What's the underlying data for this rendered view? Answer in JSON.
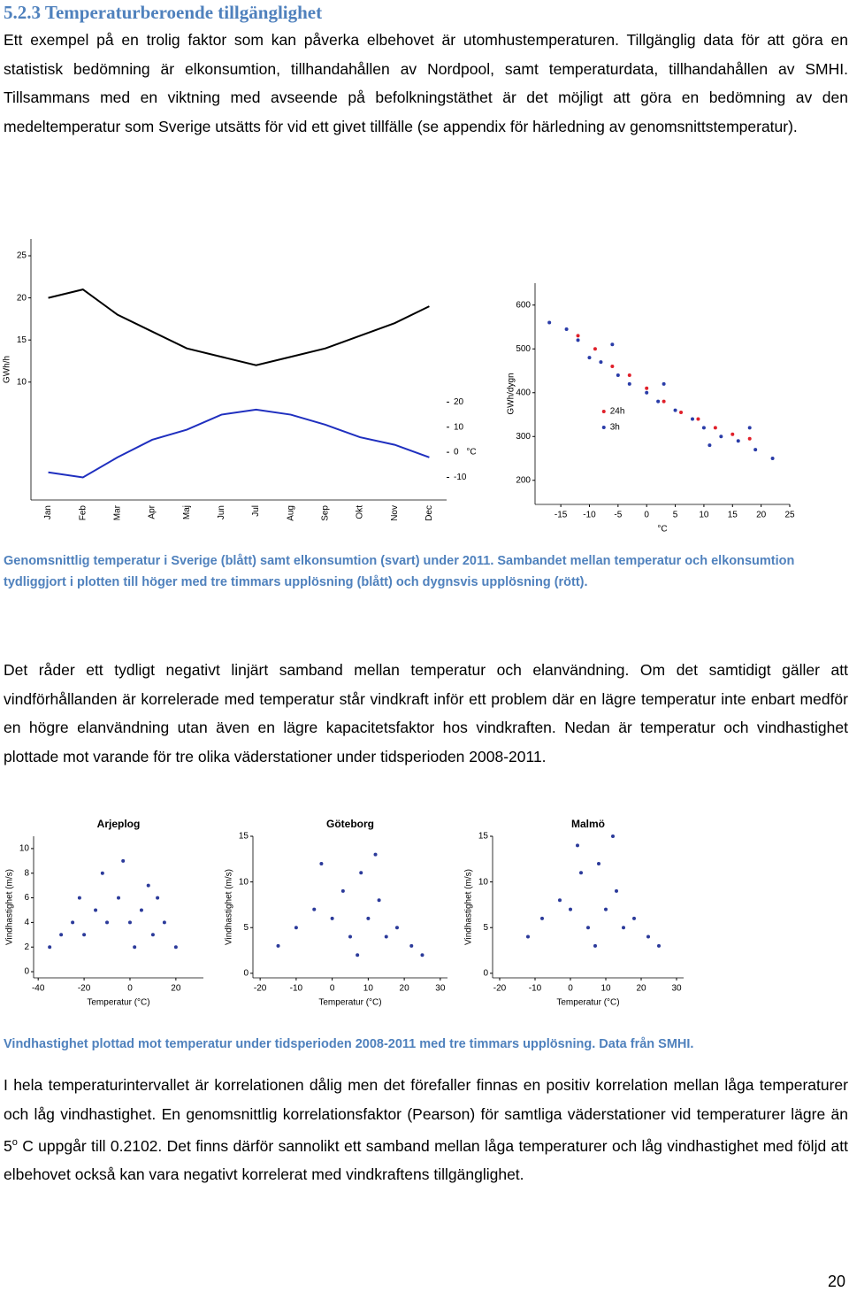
{
  "heading": "5.2.3 Temperaturberoende tillgänglighet",
  "body": {
    "p1": "Ett exempel på en trolig faktor som kan påverka elbehovet är utomhustemperaturen. Tillgänglig data för att göra en statistisk bedömning är elkonsumtion, tillhandahållen av Nordpool, samt temperaturdata, tillhandahållen av SMHI. Tillsammans med en viktning med avseende på befolkningstäthet är det möjligt att göra en bedömning av den medeltemperatur som Sverige utsätts för vid ett givet tillfälle (se appendix för härledning av genomsnittstemperatur).",
    "p2": "Det råder ett tydligt negativt linjärt samband mellan temperatur och elanvändning. Om det samtidigt gäller att vindförhållanden är korrelerade med temperatur står vindkraft inför ett problem där en lägre temperatur inte enbart medför en högre elanvändning utan även en lägre kapacitetsfaktor hos vindkraften. Nedan är temperatur och vindhastighet plottade mot varande för tre olika väderstationer under tidsperioden 2008-2011.",
    "p3": [
      "I hela temperaturintervallet är korrelationen dålig men det förefaller finnas en positiv korrelation mellan låga temperaturer och låg vindhastighet. En genomsnittlig korrelationsfaktor (Pearson) för samtliga väderstationer vid temperaturer lägre än 5",
      "o",
      " C uppgår till 0.2102. Det finns därför sannolikt ett samband mellan låga temperaturer och låg vindhastighet med följd att elbehovet också kan vara negativt korrelerat med vindkraftens tillgänglighet."
    ]
  },
  "captions": [
    "Genomsnittlig temperatur i Sverige (blått) samt elkonsumtion (svart) under 2011. Sambandet mellan temperatur och elkonsumtion tydliggjort i plotten till höger med tre timmars upplösning (blått) och dygnsvis upplösning (rött).",
    "Vindhastighet plottad mot temperatur under tidsperioden 2008-2011 med tre timmars upplösning. Data från SMHI."
  ],
  "page_number": "20",
  "chart_data": [
    {
      "type": "line",
      "ylabel": "GWh/h",
      "y2label": "°C",
      "categories": [
        "Jan",
        "Feb",
        "Mar",
        "Apr",
        "Maj",
        "Jun",
        "Jul",
        "Aug",
        "Sep",
        "Okt",
        "Nov",
        "Dec"
      ],
      "ylim": [
        -4,
        27
      ],
      "yticks": [
        10,
        15,
        20,
        25
      ],
      "y2lim": [
        -19,
        85
      ],
      "y2ticks": [
        -10,
        0,
        10,
        20
      ],
      "series": [
        {
          "name": "elkonsumtion",
          "color": "#000000",
          "values": [
            20,
            21,
            18,
            16,
            14,
            13,
            12,
            13,
            14,
            15.5,
            17,
            19
          ]
        },
        {
          "name": "temperatur",
          "color": "#1f2fbf",
          "axis": "y2",
          "values": [
            -8,
            -10,
            -2,
            5,
            9,
            15,
            17,
            15,
            11,
            6,
            3,
            -2
          ]
        }
      ]
    },
    {
      "type": "scatter",
      "xlabel": "°C",
      "ylabel": "GWh/dygn",
      "xlim": [
        -19.5,
        25
      ],
      "ylim": [
        145,
        650
      ],
      "xticks": [
        -15,
        -10,
        -5,
        0,
        5,
        10,
        15,
        20,
        25
      ],
      "yticks": [
        200,
        300,
        400,
        500,
        600
      ],
      "legend": "center",
      "series": [
        {
          "name": "24h",
          "color": "#e0202a",
          "x": [
            -12,
            -9,
            -6,
            -3,
            0,
            3,
            6,
            9,
            12,
            15,
            18
          ],
          "values": [
            530,
            500,
            460,
            440,
            410,
            380,
            355,
            340,
            320,
            305,
            295
          ]
        },
        {
          "name": "3h",
          "color": "#2a3ca8",
          "x": [
            -17,
            -14,
            -12,
            -10,
            -8,
            -5,
            -3,
            0,
            2,
            5,
            8,
            10,
            13,
            16,
            19,
            22,
            -6,
            3,
            11,
            18
          ],
          "values": [
            560,
            545,
            520,
            480,
            470,
            440,
            420,
            400,
            380,
            360,
            340,
            320,
            300,
            290,
            270,
            250,
            510,
            420,
            280,
            320
          ]
        }
      ]
    },
    {
      "type": "scatter",
      "title": "Arjeplog",
      "xlabel": "Temperatur (°C)",
      "ylabel": "Vindhastighet (m/s)",
      "xlim": [
        -42,
        32
      ],
      "ylim": [
        -0.5,
        11
      ],
      "xticks": [
        -40,
        -20,
        0,
        20
      ],
      "yticks": [
        0,
        2,
        4,
        6,
        8,
        10
      ],
      "series": [
        {
          "name": "Arjeplog",
          "color": "#2b3a9a",
          "x": [
            -35,
            -30,
            -25,
            -20,
            -15,
            -10,
            -5,
            0,
            5,
            10,
            15,
            20,
            -12,
            -3,
            8,
            -22,
            2,
            12
          ],
          "values": [
            2,
            3,
            4,
            3,
            5,
            4,
            6,
            4,
            5,
            3,
            4,
            2,
            8,
            9,
            7,
            6,
            2,
            6
          ]
        }
      ]
    },
    {
      "type": "scatter",
      "title": "Göteborg",
      "xlabel": "Temperatur (°C)",
      "ylabel": "Vindhastighet (m/s)",
      "xlim": [
        -22,
        32
      ],
      "ylim": [
        -0.5,
        15
      ],
      "xticks": [
        -20,
        -10,
        0,
        10,
        20,
        30
      ],
      "yticks": [
        0,
        5,
        10,
        15
      ],
      "series": [
        {
          "name": "Göteborg",
          "color": "#2b3a9a",
          "x": [
            -15,
            -10,
            -5,
            0,
            3,
            5,
            8,
            10,
            13,
            15,
            18,
            22,
            -3,
            7,
            12,
            25
          ],
          "values": [
            3,
            5,
            7,
            6,
            9,
            4,
            11,
            6,
            8,
            4,
            5,
            3,
            12,
            2,
            13,
            2
          ]
        }
      ]
    },
    {
      "type": "scatter",
      "title": "Malmö",
      "xlabel": "Temperatur (°C)",
      "ylabel": "Vindhastighet (m/s)",
      "xlim": [
        -22,
        32
      ],
      "ylim": [
        -0.5,
        15
      ],
      "xticks": [
        -20,
        -10,
        0,
        10,
        20,
        30
      ],
      "yticks": [
        0,
        5,
        10,
        15
      ],
      "series": [
        {
          "name": "Malmö",
          "color": "#2b3a9a",
          "x": [
            -12,
            -8,
            -3,
            0,
            3,
            5,
            8,
            10,
            13,
            15,
            18,
            22,
            2,
            7,
            12,
            25
          ],
          "values": [
            4,
            6,
            8,
            7,
            11,
            5,
            12,
            7,
            9,
            5,
            6,
            4,
            14,
            3,
            15,
            3
          ]
        }
      ]
    }
  ]
}
